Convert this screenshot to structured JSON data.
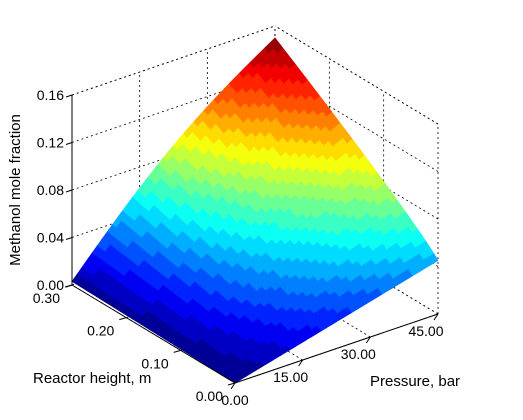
{
  "chart_data": {
    "type": "surface3d",
    "zlabel": "Methanol mole fraction",
    "ylabel": "Reactor height, m",
    "xlabel": "Pressure, bar",
    "z_ticks": [
      "0.00",
      "0.04",
      "0.08",
      "0.12",
      "0.16"
    ],
    "y_ticks": [
      "0.00",
      "0.10",
      "0.20",
      "0.30"
    ],
    "x_ticks": [
      "0.00",
      "15.00",
      "30.00",
      "45.00"
    ],
    "xlim": [
      0,
      45
    ],
    "ylim": [
      0,
      0.3
    ],
    "zlim": [
      0,
      0.16
    ],
    "grid": true,
    "colormap": "jet",
    "surface": {
      "pressure": [
        0,
        45
      ],
      "reactor_height": [
        0,
        0.3
      ],
      "corner_values": {
        "p0_h0": 0.0,
        "p45_h0": 0.045,
        "p0_h030": 0.003,
        "p45_h030": 0.15
      },
      "pressure_curvature": 0.012,
      "height_exponent": 0.9
    }
  }
}
